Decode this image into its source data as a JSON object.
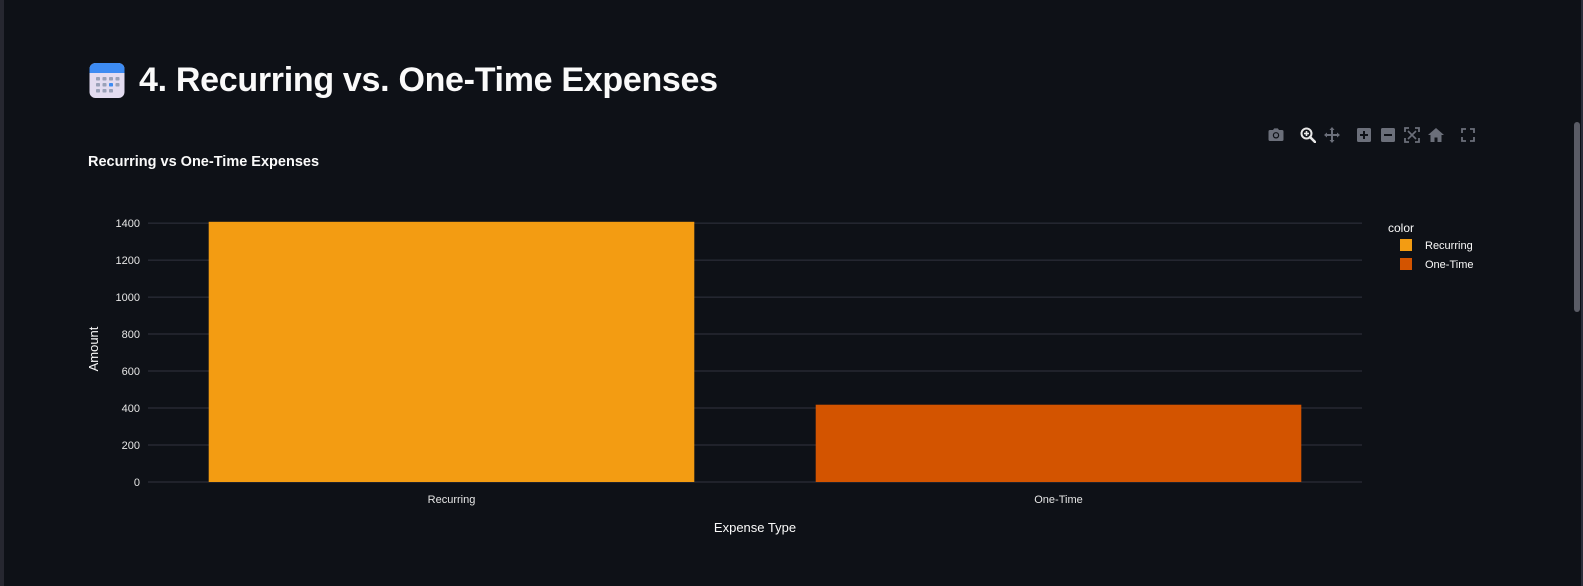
{
  "section": {
    "title": "4. Recurring vs. One-Time Expenses",
    "icon": "calendar-icon"
  },
  "modebar": {
    "buttons": [
      {
        "name": "camera-icon",
        "tooltip": "Download plot as a png"
      },
      {
        "name": "zoom-icon",
        "tooltip": "Zoom"
      },
      {
        "name": "pan-icon",
        "tooltip": "Pan"
      },
      {
        "name": "zoom-in-icon",
        "tooltip": "Zoom in"
      },
      {
        "name": "zoom-out-icon",
        "tooltip": "Zoom out"
      },
      {
        "name": "autoscale-icon",
        "tooltip": "Autoscale"
      },
      {
        "name": "reset-axes-icon",
        "tooltip": "Reset axes"
      },
      {
        "name": "fullscreen-icon",
        "tooltip": "Fullscreen"
      }
    ]
  },
  "colors": {
    "background": "#0e1117",
    "grid": "#31333f",
    "text": "#fafafa",
    "tick": "#e6e6e6",
    "recurring": "#f39c12",
    "one_time": "#d35400"
  },
  "chart_data": {
    "type": "bar",
    "title": "Recurring vs One-Time Expenses",
    "xlabel": "Expense Type",
    "ylabel": "Amount",
    "categories": [
      "Recurring",
      "One-Time"
    ],
    "series": [
      {
        "name": "Recurring",
        "values": [
          1407,
          null
        ],
        "color": "#f39c12"
      },
      {
        "name": "One-Time",
        "values": [
          null,
          418
        ],
        "color": "#d35400"
      }
    ],
    "ylim": [
      0,
      1460
    ],
    "yticks": [
      0,
      200,
      400,
      600,
      800,
      1000,
      1200,
      1400
    ],
    "legend": {
      "title": "color",
      "placement": "top-right"
    },
    "grid": true
  }
}
